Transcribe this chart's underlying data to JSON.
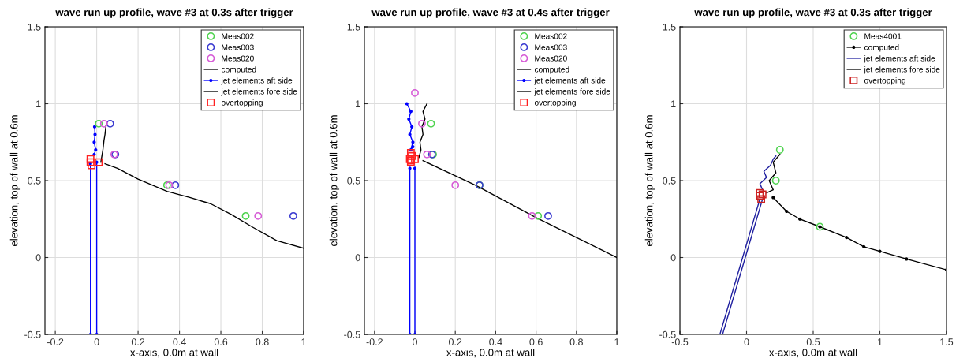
{
  "chart_data": [
    {
      "type": "scatter",
      "title": "wave run up profile, wave #3 at 0.3s after trigger",
      "xlabel": "x-axis, 0.0m at wall",
      "ylabel": "elevation, top of wall at 0.6m",
      "xlim": [
        -0.25,
        1
      ],
      "ylim": [
        -0.5,
        1.5
      ],
      "xticks": [
        -0.2,
        0,
        0.2,
        0.4,
        0.6,
        0.8,
        1
      ],
      "yticks": [
        -0.5,
        0,
        0.5,
        1,
        1.5
      ],
      "grid": true,
      "legend": "top right",
      "series": [
        {
          "name": "Meas002",
          "type": "scatter",
          "marker": "circle",
          "color": "#4fd34f",
          "x": [
            0.01,
            0.085,
            0.34,
            0.72
          ],
          "values": [
            0.87,
            null,
            0.47,
            0.27
          ]
        },
        {
          "name": "Meas003",
          "type": "scatter",
          "marker": "circle",
          "color": "#3a3ad0",
          "x": [
            0.065,
            0.09,
            0.38,
            0.95
          ],
          "values": [
            0.87,
            0.67,
            0.47,
            0.27
          ]
        },
        {
          "name": "Meas020",
          "type": "scatter",
          "marker": "circle",
          "color": "#d65ad6",
          "x": [
            0.035,
            0.085,
            0.35,
            0.78
          ],
          "values": [
            0.87,
            0.67,
            0.47,
            0.27
          ]
        },
        {
          "name": "computed",
          "type": "line",
          "marker": "none",
          "color": "#000000",
          "x": [
            0.04,
            0.1,
            0.2,
            0.34,
            0.45,
            0.55,
            0.65,
            0.75,
            0.87,
            1.0
          ],
          "values": [
            0.61,
            0.58,
            0.51,
            0.43,
            0.39,
            0.35,
            0.28,
            0.2,
            0.11,
            0.06
          ]
        },
        {
          "name": "jet elements aft side",
          "type": "line",
          "marker": "circle",
          "color": "#0000ff",
          "x": [
            -0.03,
            -0.03,
            null,
            0.0,
            0.0,
            null,
            -0.012,
            -0.005,
            -0.012,
            -0.008,
            -0.01
          ],
          "values": [
            -0.5,
            0.61,
            null,
            -0.5,
            0.62,
            null,
            0.67,
            0.7,
            0.75,
            0.8,
            0.85
          ]
        },
        {
          "name": "jet elements fore side",
          "type": "line",
          "marker": "none",
          "color": "#000000",
          "x": [
            0.02,
            0.025,
            0.03,
            0.035,
            0.04,
            0.045
          ],
          "values": [
            0.62,
            0.66,
            0.7,
            0.76,
            0.8,
            0.86
          ]
        },
        {
          "name": "overtopping",
          "type": "scatter",
          "marker": "square",
          "color": "#ff2020",
          "x": [
            -0.03,
            -0.03,
            -0.025,
            0.01
          ],
          "values": [
            0.62,
            0.64,
            0.6,
            0.62
          ]
        }
      ]
    },
    {
      "type": "scatter",
      "title": "wave run up profile, wave #3 at 0.4s after trigger",
      "xlabel": "x-axis, 0.0m at wall",
      "ylabel": "elevation, top of wall at 0.6m",
      "xlim": [
        -0.25,
        1
      ],
      "ylim": [
        -0.5,
        1.5
      ],
      "xticks": [
        -0.2,
        0,
        0.2,
        0.4,
        0.6,
        0.8,
        1
      ],
      "yticks": [
        -0.5,
        0,
        0.5,
        1,
        1.5
      ],
      "grid": true,
      "legend": "top right",
      "series": [
        {
          "name": "Meas002",
          "type": "scatter",
          "marker": "circle",
          "color": "#4fd34f",
          "x": [
            0.08,
            0.09,
            0.32,
            0.61
          ],
          "values": [
            0.87,
            0.67,
            0.47,
            0.27
          ]
        },
        {
          "name": "Meas003",
          "type": "scatter",
          "marker": "circle",
          "color": "#3a3ad0",
          "x": [
            0.085,
            0.32,
            0.66
          ],
          "values": [
            0.67,
            0.47,
            0.27
          ]
        },
        {
          "name": "Meas020",
          "type": "scatter",
          "marker": "circle",
          "color": "#d65ad6",
          "x": [
            0.0,
            0.035,
            0.06,
            0.2,
            0.58
          ],
          "values": [
            1.07,
            0.87,
            0.67,
            0.47,
            0.27
          ]
        },
        {
          "name": "computed",
          "type": "line",
          "marker": "none",
          "color": "#000000",
          "x": [
            0.04,
            0.3,
            0.6,
            1.0
          ],
          "values": [
            0.63,
            0.47,
            0.26,
            0.0
          ]
        },
        {
          "name": "jet elements aft side",
          "type": "line",
          "marker": "circle",
          "color": "#0000ff",
          "x": [
            -0.025,
            -0.025,
            null,
            0.0,
            0.0,
            null,
            -0.01,
            -0.02,
            -0.01,
            -0.025,
            -0.015,
            -0.03,
            -0.02,
            -0.04
          ],
          "values": [
            -0.5,
            0.58,
            null,
            -0.5,
            0.58,
            null,
            0.72,
            0.7,
            0.75,
            0.8,
            0.85,
            0.9,
            0.95,
            1.0
          ]
        },
        {
          "name": "jet elements fore side",
          "type": "line",
          "marker": "none",
          "color": "#000000",
          "x": [
            0.02,
            0.03,
            0.025,
            0.04,
            0.035,
            0.05,
            0.04,
            0.06
          ],
          "values": [
            0.65,
            0.7,
            0.75,
            0.8,
            0.85,
            0.9,
            0.95,
            1.0
          ]
        },
        {
          "name": "overtopping",
          "type": "scatter",
          "marker": "square",
          "color": "#ff2020",
          "x": [
            -0.02,
            -0.02,
            -0.025,
            -0.015,
            -0.02,
            0.0
          ],
          "values": [
            0.62,
            0.63,
            0.64,
            0.66,
            0.68,
            0.64
          ]
        }
      ]
    },
    {
      "type": "scatter",
      "title": "wave run up profile, wave #3 at 0.3s after trigger",
      "xlabel": "x-axis, 0.0m at wall",
      "ylabel": "elevation, top of wall at 0.6m",
      "xlim": [
        -0.5,
        1.5
      ],
      "ylim": [
        -0.5,
        1.5
      ],
      "xticks": [
        -0.5,
        0,
        0.5,
        1,
        1.5
      ],
      "yticks": [
        -0.5,
        0,
        0.5,
        1,
        1.5
      ],
      "grid": true,
      "legend": "top right",
      "series": [
        {
          "name": "Meas4001",
          "type": "scatter",
          "marker": "circle",
          "color": "#4fd34f",
          "x": [
            0.25,
            0.22,
            0.55
          ],
          "values": [
            0.7,
            0.5,
            0.2
          ]
        },
        {
          "name": "computed",
          "type": "line",
          "marker": "circle",
          "color": "#000000",
          "x": [
            0.2,
            0.3,
            0.4,
            0.55,
            0.75,
            0.88,
            1.0,
            1.2,
            1.5
          ],
          "values": [
            0.39,
            0.3,
            0.25,
            0.2,
            0.13,
            0.07,
            0.04,
            -0.01,
            -0.08
          ]
        },
        {
          "name": "jet elements aft side",
          "type": "line",
          "marker": "none",
          "color": "#2020a0",
          "x": [
            -0.2,
            0.1,
            null,
            -0.18,
            0.12,
            null,
            0.12,
            0.1,
            0.15,
            0.13,
            0.18,
            0.2,
            0.22
          ],
          "values": [
            -0.5,
            0.38,
            null,
            -0.5,
            0.38,
            null,
            0.44,
            0.48,
            0.52,
            0.56,
            0.6,
            0.64,
            0.66
          ]
        },
        {
          "name": "jet elements fore side",
          "type": "line",
          "marker": "none",
          "color": "#000000",
          "x": [
            0.15,
            0.2,
            0.17,
            0.22,
            0.2,
            0.25
          ],
          "values": [
            0.42,
            0.44,
            0.5,
            0.55,
            0.62,
            0.67
          ]
        },
        {
          "name": "overtopping",
          "type": "scatter",
          "marker": "square",
          "color": "#cc2020",
          "x": [
            0.1,
            0.11,
            0.1,
            0.12
          ],
          "values": [
            0.4,
            0.38,
            0.42,
            0.41
          ]
        }
      ]
    }
  ]
}
